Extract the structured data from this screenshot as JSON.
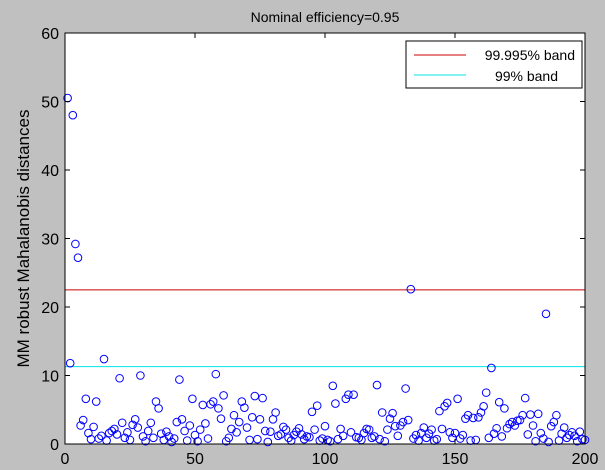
{
  "chart_data": {
    "type": "scatter",
    "title": "Nominal efficiency=0.95",
    "xlabel": "",
    "ylabel": "MM robust Mahalanobis distances",
    "xlim": [
      0,
      200
    ],
    "ylim": [
      0,
      60
    ],
    "xticks": [
      0,
      50,
      100,
      150,
      200
    ],
    "yticks": [
      0,
      10,
      20,
      30,
      40,
      50,
      60
    ],
    "grid": false,
    "legend_position": "top-right",
    "reference_lines": [
      {
        "label": "99.995% band",
        "y": 22.5,
        "color": "#cc0000"
      },
      {
        "label": "99% band",
        "y": 11.3,
        "color": "#00e5e5"
      }
    ],
    "marker_color": "#0000ff",
    "series": [
      {
        "marker": "open-circle",
        "points": [
          [
            1,
            50.5
          ],
          [
            2,
            11.8
          ],
          [
            3,
            48
          ],
          [
            4,
            29.2
          ],
          [
            5,
            27.2
          ],
          [
            6,
            2.7
          ],
          [
            7,
            3.5
          ],
          [
            8,
            6.6
          ],
          [
            9,
            1.6
          ],
          [
            10,
            0.7
          ],
          [
            11,
            2.5
          ],
          [
            12,
            6.2
          ],
          [
            13,
            0.8
          ],
          [
            14,
            1.2
          ],
          [
            15,
            12.4
          ],
          [
            16,
            0.5
          ],
          [
            17,
            1.6
          ],
          [
            18,
            1.9
          ],
          [
            19,
            2.2
          ],
          [
            20,
            1.4
          ],
          [
            21,
            9.6
          ],
          [
            22,
            3.1
          ],
          [
            23,
            0.9
          ],
          [
            24,
            1.7
          ],
          [
            25,
            0.6
          ],
          [
            26,
            2.8
          ],
          [
            27,
            3.6
          ],
          [
            28,
            2.4
          ],
          [
            29,
            10
          ],
          [
            30,
            1.1
          ],
          [
            31,
            0.4
          ],
          [
            32,
            1.9
          ],
          [
            33,
            3.1
          ],
          [
            34,
            0.9
          ],
          [
            35,
            6.2
          ],
          [
            36,
            5.2
          ],
          [
            37,
            1.5
          ],
          [
            38,
            0.6
          ],
          [
            39,
            1.8
          ],
          [
            40,
            1.1
          ],
          [
            41,
            0.3
          ],
          [
            42,
            0.8
          ],
          [
            43,
            3.2
          ],
          [
            44,
            9.4
          ],
          [
            45,
            3.6
          ],
          [
            46,
            1.9
          ],
          [
            47,
            0.5
          ],
          [
            48,
            2.7
          ],
          [
            49,
            6.6
          ],
          [
            50,
            1.3
          ],
          [
            51,
            0.4
          ],
          [
            52,
            2.1
          ],
          [
            53,
            5.7
          ],
          [
            54,
            3
          ],
          [
            55,
            0.8
          ],
          [
            56,
            5.8
          ],
          [
            57,
            6.2
          ],
          [
            58,
            10.2
          ],
          [
            59,
            5.2
          ],
          [
            60,
            3.7
          ],
          [
            61,
            7.1
          ],
          [
            62,
            0.4
          ],
          [
            63,
            0.9
          ],
          [
            64,
            2.2
          ],
          [
            65,
            4.2
          ],
          [
            66,
            1.7
          ],
          [
            67,
            3.2
          ],
          [
            68,
            6.2
          ],
          [
            69,
            5.3
          ],
          [
            70,
            2.4
          ],
          [
            71,
            0.6
          ],
          [
            72,
            3.9
          ],
          [
            73,
            7
          ],
          [
            74,
            0.7
          ],
          [
            75,
            3.6
          ],
          [
            76,
            6.7
          ],
          [
            77,
            1.9
          ],
          [
            78,
            0.3
          ],
          [
            79,
            1.8
          ],
          [
            80,
            3.6
          ],
          [
            81,
            4.6
          ],
          [
            82,
            1.2
          ],
          [
            83,
            1.4
          ],
          [
            84,
            2.5
          ],
          [
            85,
            2.1
          ],
          [
            86,
            0.9
          ],
          [
            87,
            0.5
          ],
          [
            88,
            1.3
          ],
          [
            89,
            1.8
          ],
          [
            90,
            2.3
          ],
          [
            91,
            1.4
          ],
          [
            92,
            0.7
          ],
          [
            93,
            1.1
          ],
          [
            94,
            1
          ],
          [
            95,
            4.7
          ],
          [
            96,
            2.1
          ],
          [
            97,
            5.6
          ],
          [
            98,
            0.5
          ],
          [
            99,
            0.8
          ],
          [
            100,
            2.6
          ],
          [
            101,
            0.6
          ],
          [
            102,
            0.4
          ],
          [
            103,
            8.5
          ],
          [
            104,
            5.9
          ],
          [
            105,
            0.7
          ],
          [
            106,
            2.2
          ],
          [
            107,
            1.2
          ],
          [
            108,
            6.6
          ],
          [
            109,
            7.2
          ],
          [
            110,
            1.7
          ],
          [
            111,
            7.2
          ],
          [
            112,
            1
          ],
          [
            113,
            0.9
          ],
          [
            114,
            0.6
          ],
          [
            115,
            1.6
          ],
          [
            116,
            2.2
          ],
          [
            117,
            2.1
          ],
          [
            118,
            0.9
          ],
          [
            119,
            1.1
          ],
          [
            120,
            8.6
          ],
          [
            121,
            0.7
          ],
          [
            122,
            4.6
          ],
          [
            123,
            0.4
          ],
          [
            124,
            2.1
          ],
          [
            125,
            3.7
          ],
          [
            126,
            4.5
          ],
          [
            127,
            2.6
          ],
          [
            128,
            1.2
          ],
          [
            129,
            2.7
          ],
          [
            130,
            3.2
          ],
          [
            131,
            8.1
          ],
          [
            132,
            3.5
          ],
          [
            133,
            22.6
          ],
          [
            134,
            0.8
          ],
          [
            135,
            1.3
          ],
          [
            136,
            0.5
          ],
          [
            137,
            1.6
          ],
          [
            138,
            2.4
          ],
          [
            139,
            0.9
          ],
          [
            140,
            1.5
          ],
          [
            141,
            2.1
          ],
          [
            142,
            0.5
          ],
          [
            143,
            0.7
          ],
          [
            144,
            4.8
          ],
          [
            145,
            2.2
          ],
          [
            146,
            5.5
          ],
          [
            147,
            6
          ],
          [
            148,
            1.7
          ],
          [
            149,
            0.9
          ],
          [
            150,
            1.6
          ],
          [
            151,
            6.6
          ],
          [
            152,
            0.8
          ],
          [
            153,
            1.3
          ],
          [
            154,
            3.7
          ],
          [
            155,
            4.2
          ],
          [
            156,
            0.5
          ],
          [
            157,
            3.8
          ],
          [
            158,
            0.6
          ],
          [
            159,
            3.9
          ],
          [
            160,
            4.6
          ],
          [
            161,
            5.5
          ],
          [
            162,
            7.5
          ],
          [
            163,
            0.9
          ],
          [
            164,
            11.1
          ],
          [
            165,
            1.5
          ],
          [
            166,
            2.3
          ],
          [
            167,
            6.1
          ],
          [
            168,
            1.1
          ],
          [
            169,
            5.2
          ],
          [
            170,
            2.3
          ],
          [
            171,
            2.9
          ],
          [
            172,
            3.2
          ],
          [
            173,
            2.7
          ],
          [
            174,
            3.4
          ],
          [
            175,
            3.5
          ],
          [
            176,
            4.2
          ],
          [
            177,
            6.7
          ],
          [
            178,
            1.4
          ],
          [
            179,
            4.3
          ],
          [
            180,
            2.7
          ],
          [
            181,
            0.4
          ],
          [
            182,
            4.4
          ],
          [
            183,
            1.6
          ],
          [
            184,
            0.8
          ],
          [
            185,
            19
          ],
          [
            186,
            0.3
          ],
          [
            187,
            2.6
          ],
          [
            188,
            3.2
          ],
          [
            189,
            4.2
          ],
          [
            190,
            0.5
          ],
          [
            191,
            1.5
          ],
          [
            192,
            2.4
          ],
          [
            193,
            0.9
          ],
          [
            194,
            1.3
          ],
          [
            195,
            1.7
          ],
          [
            196,
            1.2
          ],
          [
            197,
            0.4
          ],
          [
            198,
            1.8
          ],
          [
            199,
            0.7
          ],
          [
            200,
            0.6
          ]
        ]
      }
    ]
  }
}
